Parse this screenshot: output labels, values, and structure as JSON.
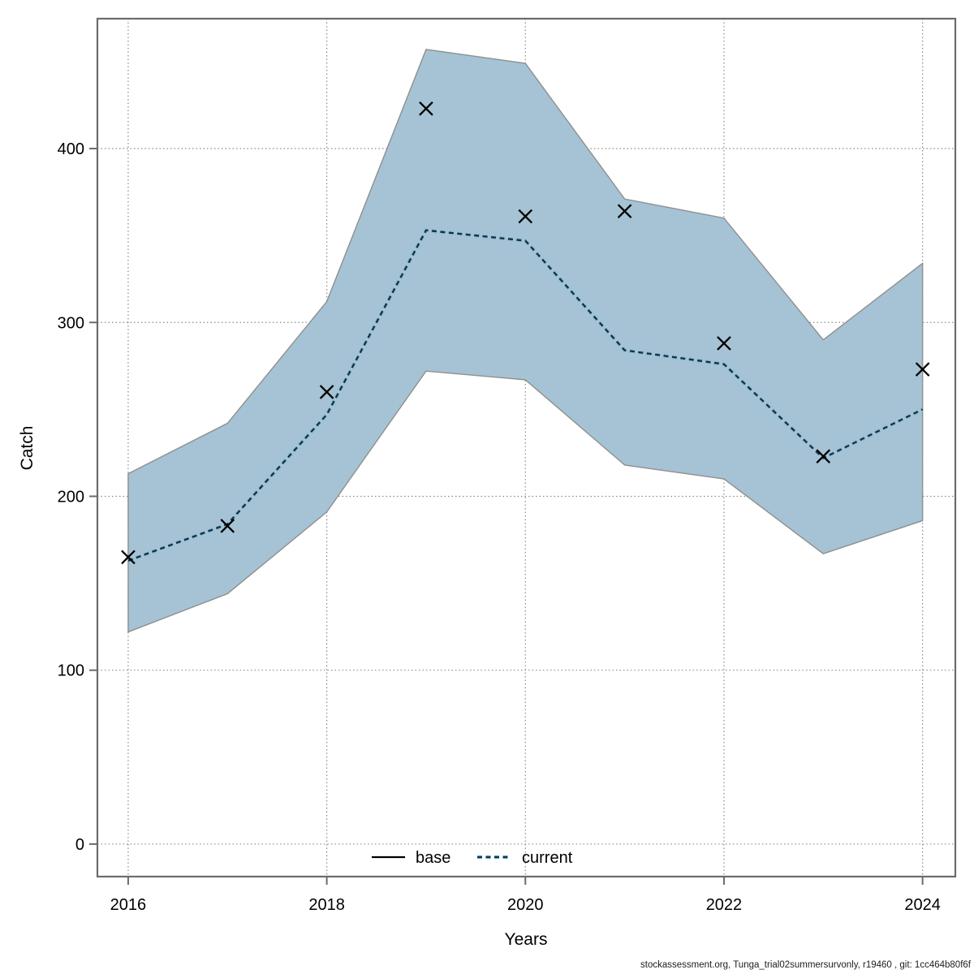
{
  "footer": {
    "text": "stockassessment.org, Tunga_trial02summersurvonly, r19460 , git: 1cc464b80f6f"
  },
  "colors": {
    "band_fill": "#a5c3d4",
    "band_edge": "#8f8f8f",
    "current_line_dark": "#17303d",
    "current_line_light": "#7cbbdd",
    "base_line": "#000000",
    "marker": "#000000",
    "grid": "#8a8a8a",
    "box": "#6b6b6b",
    "text": "#000000"
  },
  "chart_data": {
    "type": "line",
    "title": "",
    "xlabel": "Years",
    "ylabel": "Catch",
    "x": [
      2016,
      2017,
      2018,
      2019,
      2020,
      2021,
      2022,
      2023,
      2024
    ],
    "series": [
      {
        "name": "base",
        "line": "solid",
        "color": "#000000",
        "visible_in_plot": false,
        "values": null
      },
      {
        "name": "current",
        "line": "dotted",
        "values": [
          163,
          184,
          247,
          353,
          347,
          284,
          276,
          222,
          250
        ],
        "band_low": [
          122,
          144,
          191,
          272,
          267,
          218,
          210,
          167,
          186
        ],
        "band_high": [
          213,
          242,
          312,
          457,
          449,
          371,
          360,
          290,
          334
        ]
      }
    ],
    "observations": {
      "marker": "x",
      "values": [
        165,
        183,
        260,
        423,
        361,
        364,
        288,
        223,
        273
      ]
    },
    "xticks": [
      2016,
      2018,
      2020,
      2022,
      2024
    ],
    "yticks": [
      0,
      100,
      200,
      300,
      400
    ],
    "xlim": [
      2015.69,
      2024.33
    ],
    "ylim": [
      -18.7,
      474.7
    ],
    "grid": true,
    "legend": {
      "position": "bottom-center-inside",
      "entries": [
        {
          "label": "base",
          "line": "solid"
        },
        {
          "label": "current",
          "line": "dotted"
        }
      ]
    }
  }
}
